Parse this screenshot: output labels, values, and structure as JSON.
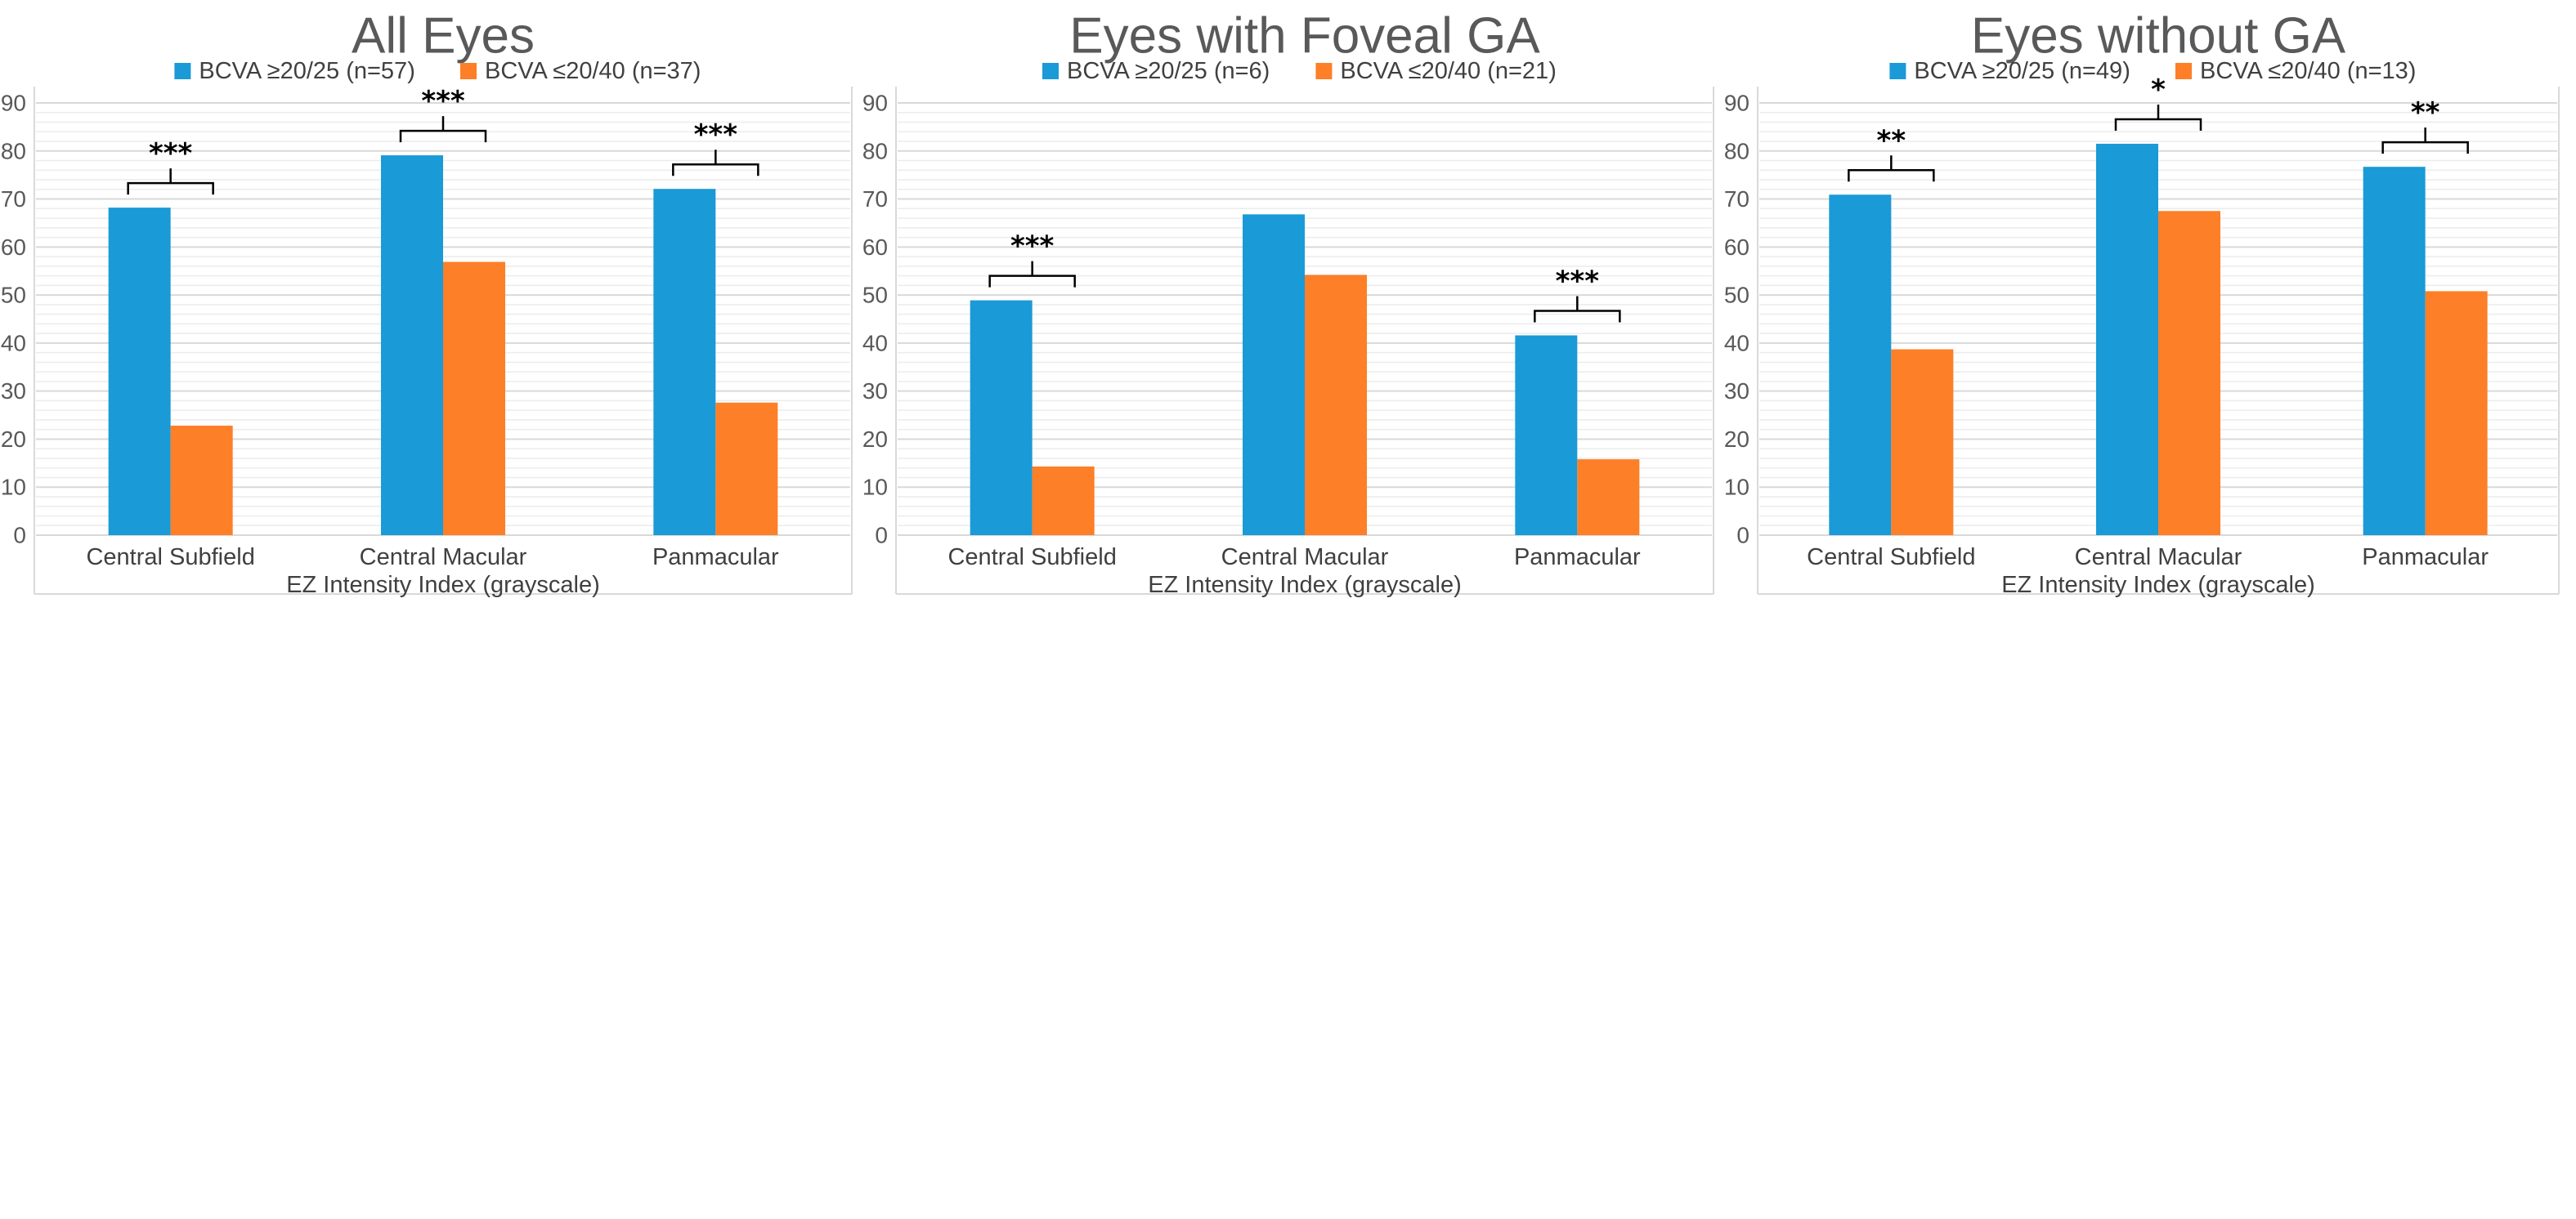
{
  "colors": {
    "series1": "#1a9ad6",
    "series2": "#fd7f28",
    "grid_major": "#d9d9d9",
    "grid_minor": "#ececec",
    "axis_box": "#d9d9d9",
    "bracket": "#000000"
  },
  "chart_data": [
    {
      "type": "bar",
      "title": "All Eyes",
      "categories": [
        "Central Subfield",
        "Central Macular",
        "Panmacular"
      ],
      "series": [
        {
          "name": "BCVA ≥20/25 (n=57)",
          "values": [
            68.2,
            79.1,
            72.1
          ]
        },
        {
          "name": "BCVA ≤20/40 (n=37)",
          "values": [
            22.8,
            56.9,
            27.6
          ]
        }
      ],
      "significance": [
        "***",
        "***",
        "***"
      ],
      "xlabel": "EZ Intensity Index (grayscale)",
      "ylabel": "",
      "ylim": [
        0,
        90
      ],
      "yticks": [
        "0",
        "10",
        "20",
        "30",
        "40",
        "50",
        "60",
        "70",
        "80",
        "90"
      ],
      "legend": "top",
      "grid": true
    },
    {
      "type": "bar",
      "title": "Eyes with Foveal GA",
      "categories": [
        "Central Subfield",
        "Central Macular",
        "Panmacular"
      ],
      "series": [
        {
          "name": "BCVA ≥20/25 (n=6)",
          "values": [
            48.9,
            66.8,
            41.6
          ]
        },
        {
          "name": "BCVA ≤20/40 (n=21)",
          "values": [
            14.3,
            54.2,
            15.8
          ]
        }
      ],
      "significance": [
        "***",
        "",
        "***"
      ],
      "xlabel": "EZ Intensity Index (grayscale)",
      "ylabel": "",
      "ylim": [
        0,
        90
      ],
      "yticks": [
        "0",
        "10",
        "20",
        "30",
        "40",
        "50",
        "60",
        "70",
        "80",
        "90"
      ],
      "legend": "top",
      "grid": true
    },
    {
      "type": "bar",
      "title": "Eyes without GA",
      "categories": [
        "Central Subfield",
        "Central Macular",
        "Panmacular"
      ],
      "series": [
        {
          "name": "BCVA ≥20/25 (n=49)",
          "values": [
            70.9,
            81.5,
            76.7
          ]
        },
        {
          "name": "BCVA ≤20/40 (n=13)",
          "values": [
            38.7,
            67.5,
            50.8
          ]
        }
      ],
      "significance": [
        "**",
        "*",
        "**"
      ],
      "xlabel": "EZ Intensity Index (grayscale)",
      "ylabel": "",
      "ylim": [
        0,
        90
      ],
      "yticks": [
        "0",
        "10",
        "20",
        "30",
        "40",
        "50",
        "60",
        "70",
        "80",
        "90"
      ],
      "legend": "top",
      "grid": true
    }
  ]
}
